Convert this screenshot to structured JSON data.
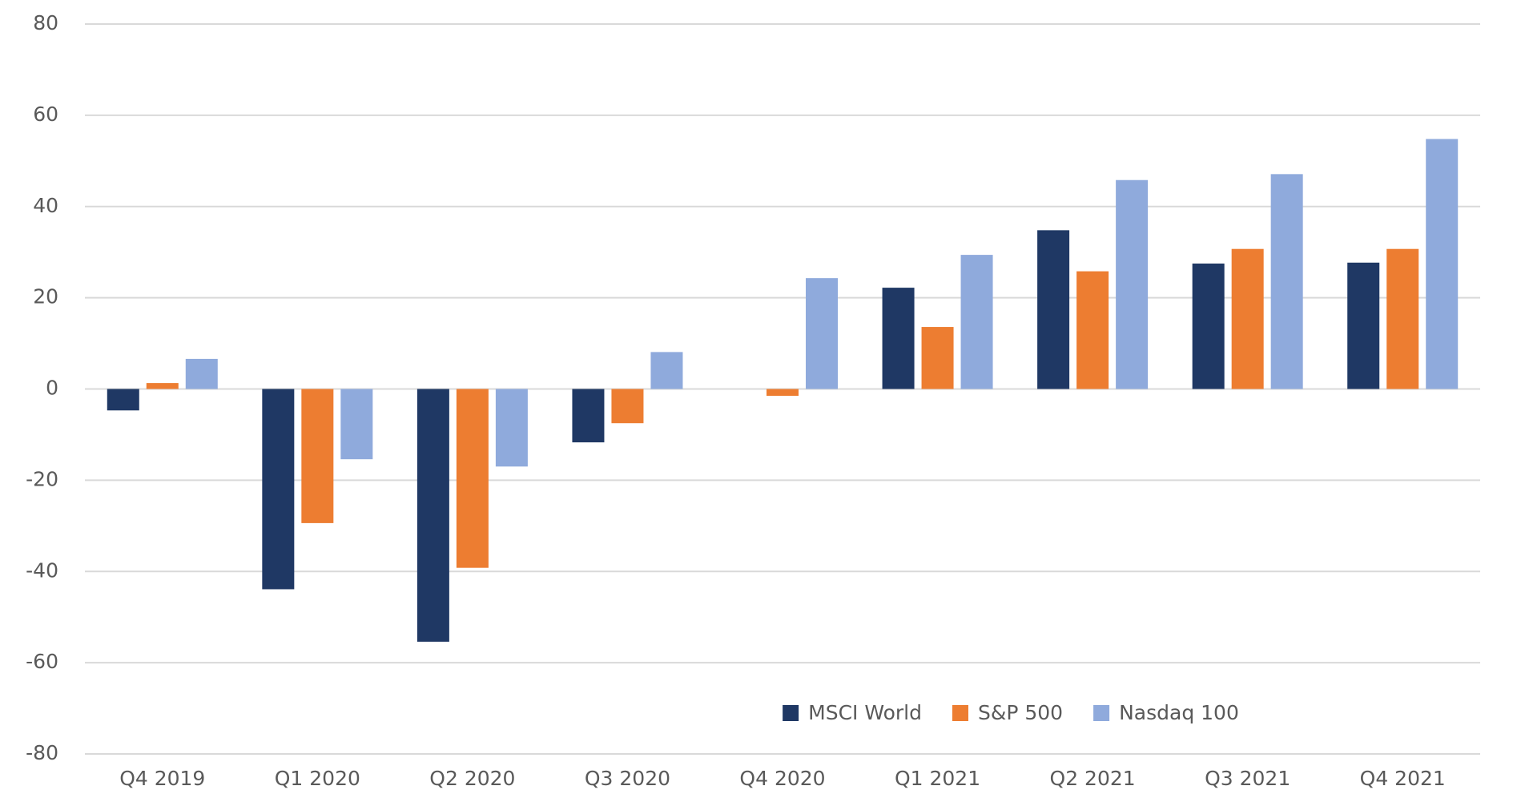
{
  "chart_data": {
    "type": "bar",
    "categories": [
      "Q4 2019",
      "Q1 2020",
      "Q2 2020",
      "Q3 2020",
      "Q4 2020",
      "Q1 2021",
      "Q2 2021",
      "Q3 2021",
      "Q4 2021"
    ],
    "series": [
      {
        "name": "MSCI World",
        "color": "#1f3864",
        "values": [
          -4.7,
          -43.9,
          -55.4,
          -11.7,
          0,
          22.2,
          34.8,
          27.5,
          27.7
        ]
      },
      {
        "name": "S&P 500",
        "color": "#ed7d31",
        "values": [
          1.3,
          -29.4,
          -39.2,
          -7.5,
          -1.5,
          13.6,
          25.8,
          30.7,
          30.7
        ]
      },
      {
        "name": "Nasdaq 100",
        "color": "#8faadc",
        "values": [
          6.6,
          -15.4,
          -17,
          8.1,
          24.3,
          29.4,
          45.8,
          47.1,
          54.8
        ]
      }
    ],
    "ylim": [
      -80,
      80
    ],
    "yticks": [
      -80,
      -60,
      -40,
      -20,
      0,
      20,
      40,
      60,
      80
    ],
    "grid": true,
    "legend": "bottom"
  }
}
